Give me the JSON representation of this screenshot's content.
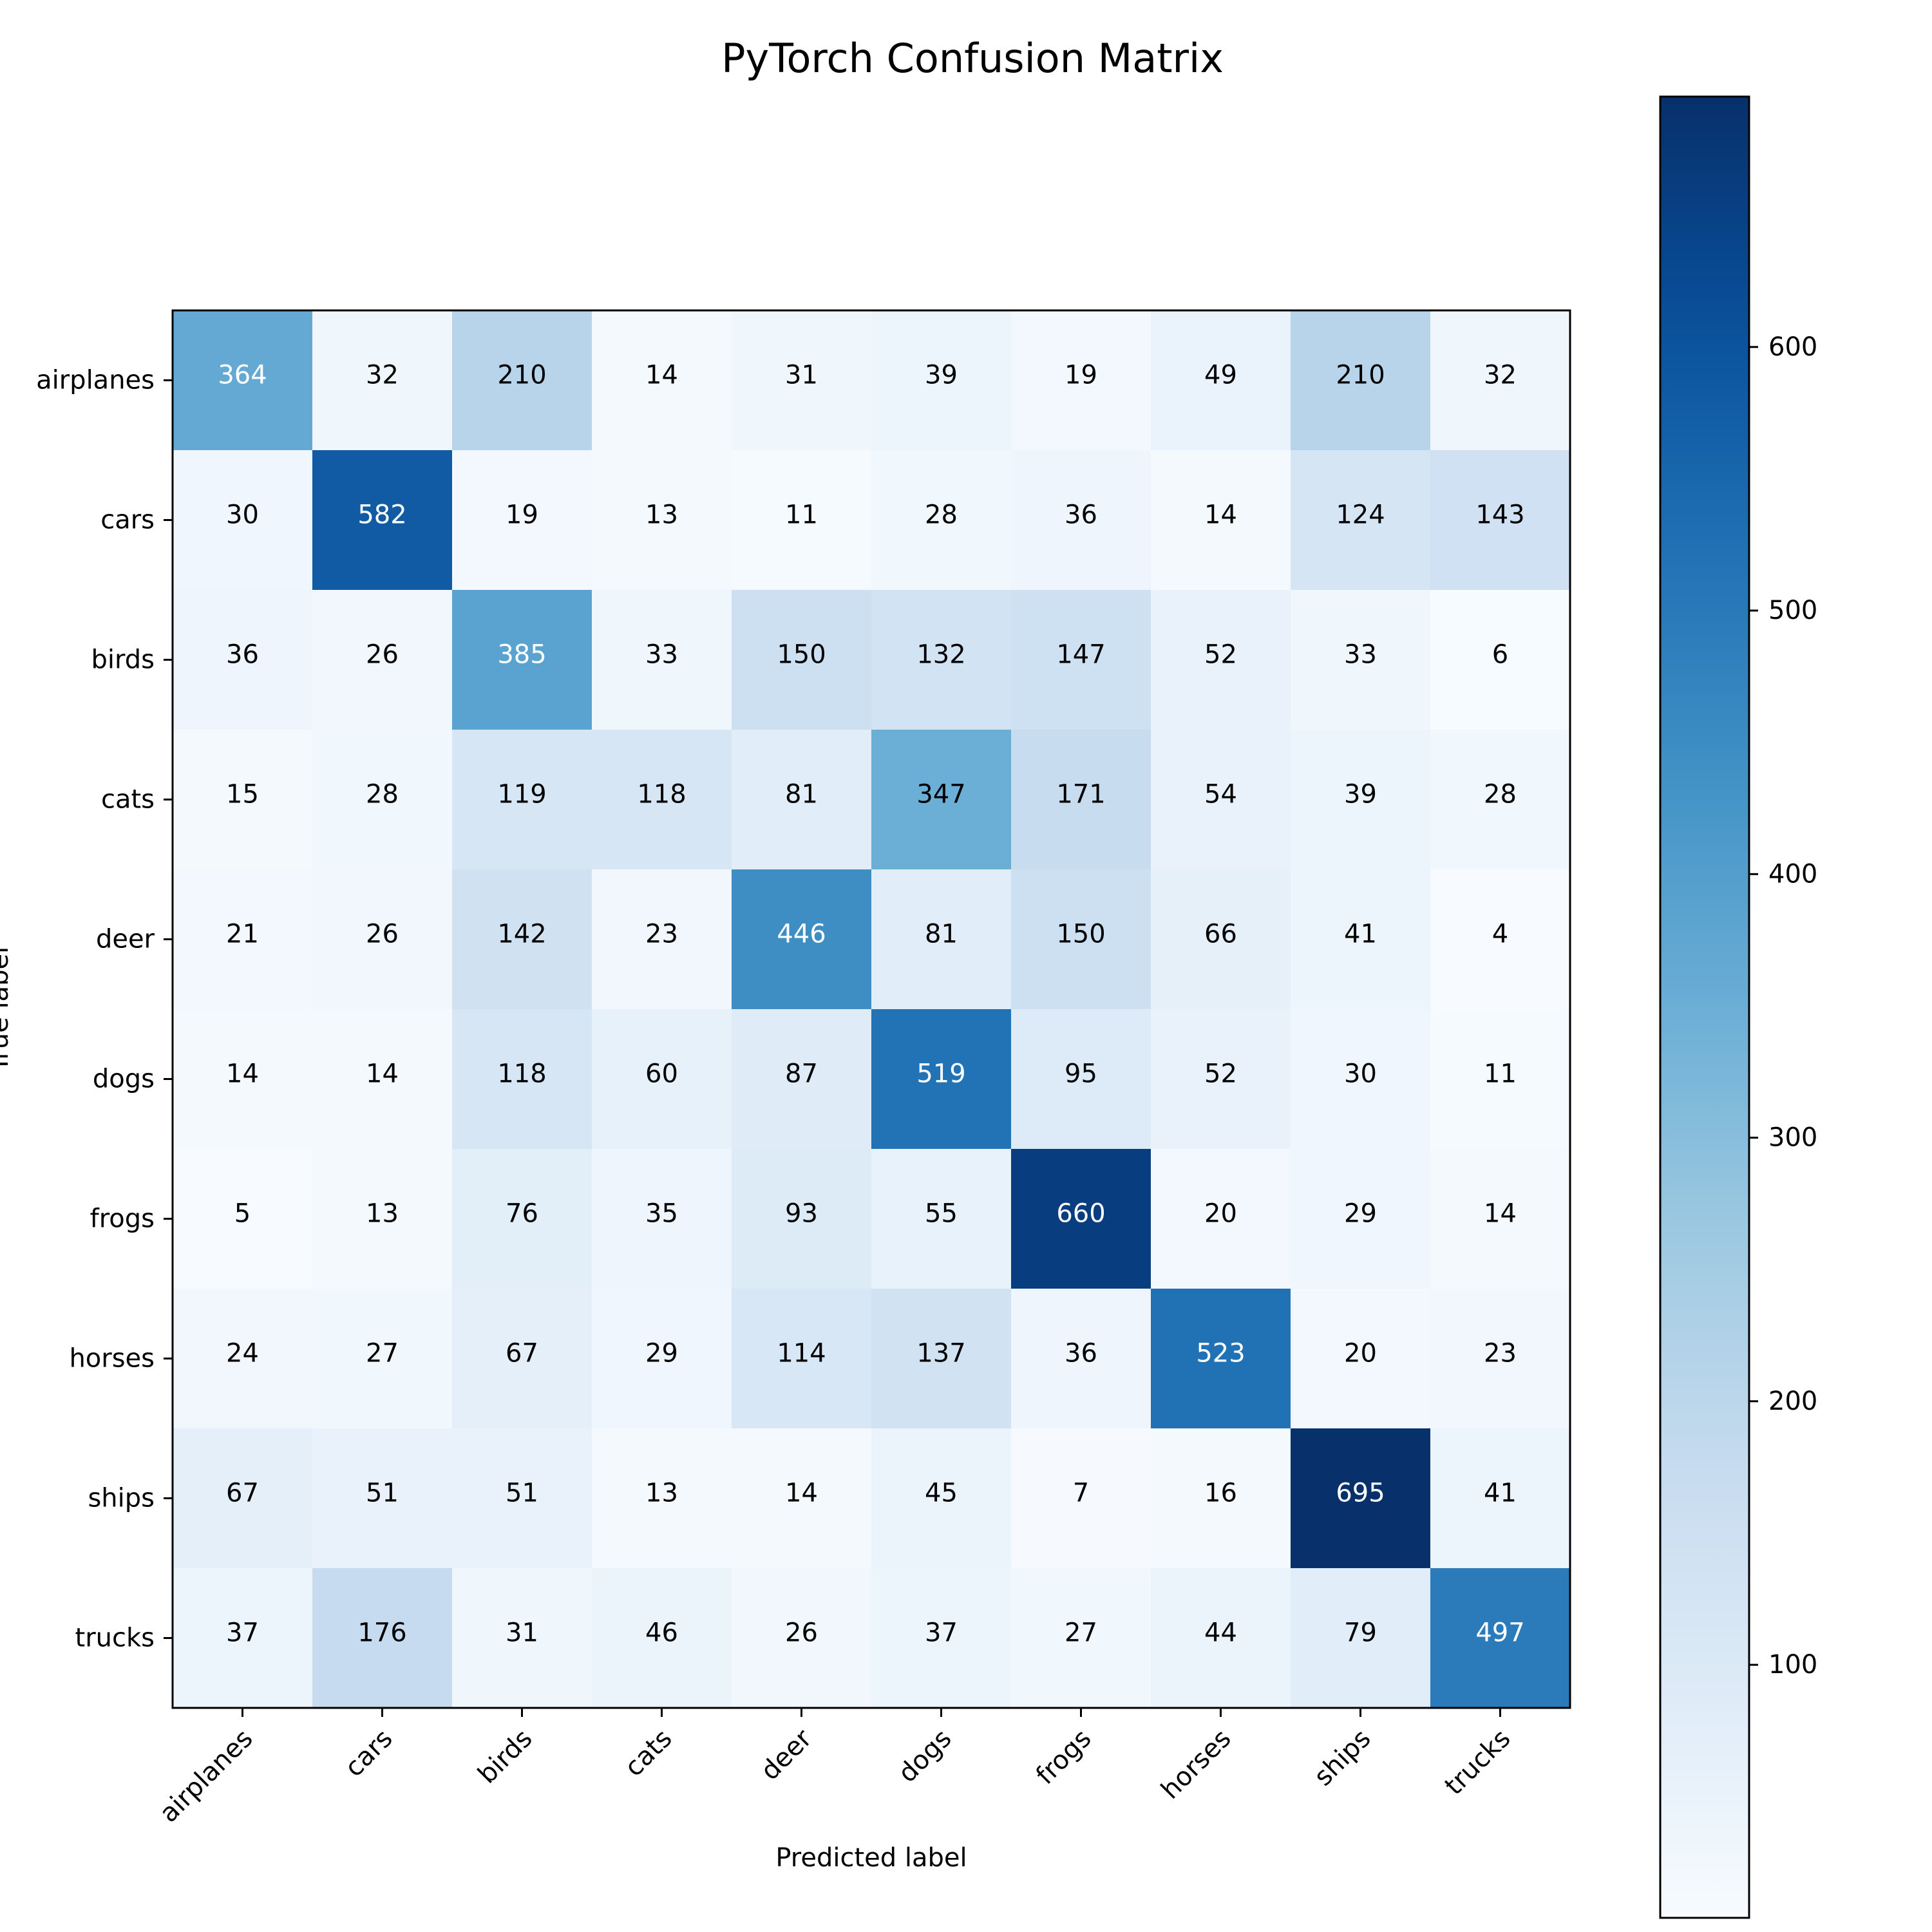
{
  "chart_data": {
    "type": "heatmap",
    "title": "PyTorch Confusion Matrix",
    "xlabel": "Predicted label",
    "ylabel": "True label",
    "x_categories": [
      "airplanes",
      "cars",
      "birds",
      "cats",
      "deer",
      "dogs",
      "frogs",
      "horses",
      "ships",
      "trucks"
    ],
    "y_categories": [
      "airplanes",
      "cars",
      "birds",
      "cats",
      "deer",
      "dogs",
      "frogs",
      "horses",
      "ships",
      "trucks"
    ],
    "values": [
      [
        364,
        32,
        210,
        14,
        31,
        39,
        19,
        49,
        210,
        32
      ],
      [
        30,
        582,
        19,
        13,
        11,
        28,
        36,
        14,
        124,
        143
      ],
      [
        36,
        26,
        385,
        33,
        150,
        132,
        147,
        52,
        33,
        6
      ],
      [
        15,
        28,
        119,
        118,
        81,
        347,
        171,
        54,
        39,
        28
      ],
      [
        21,
        26,
        142,
        23,
        446,
        81,
        150,
        66,
        41,
        4
      ],
      [
        14,
        14,
        118,
        60,
        87,
        519,
        95,
        52,
        30,
        11
      ],
      [
        5,
        13,
        76,
        35,
        93,
        55,
        660,
        20,
        29,
        14
      ],
      [
        24,
        27,
        67,
        29,
        114,
        137,
        36,
        523,
        20,
        23
      ],
      [
        67,
        51,
        51,
        13,
        14,
        45,
        7,
        16,
        695,
        41
      ],
      [
        37,
        176,
        31,
        46,
        26,
        37,
        27,
        44,
        79,
        497
      ]
    ],
    "colormap": "Blues",
    "color_min": 4,
    "color_max": 695,
    "colorbar_ticks": [
      100,
      200,
      300,
      400,
      500,
      600
    ],
    "grid": false,
    "x_tick_rotation": 45
  }
}
